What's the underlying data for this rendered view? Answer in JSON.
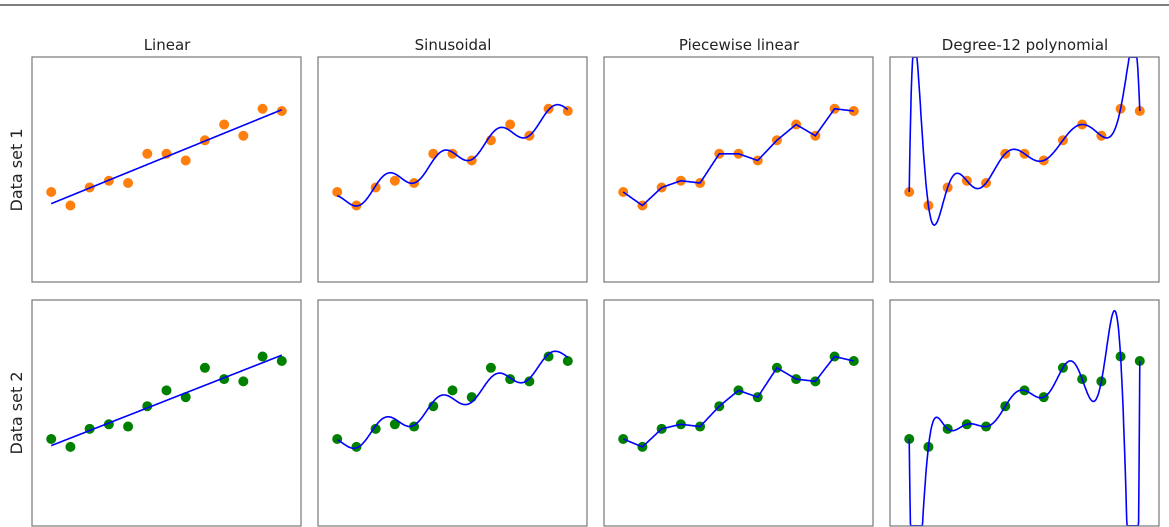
{
  "colors": {
    "fit_line": "#0000ff",
    "data_set_1": "#ff7f0e",
    "data_set_2": "#008000",
    "frame": "#777777"
  },
  "chart_data": {
    "type": "scatter",
    "layout": "grid 2 rows x 4 columns",
    "grid": false,
    "axes_ticks": false,
    "column_titles": [
      "Linear",
      "Sinusoidal",
      "Piecewise linear",
      "Degree-12 polynomial"
    ],
    "row_labels": [
      "Data set 1",
      "Data set 2"
    ],
    "xlim": [
      -1,
      13
    ],
    "ylim": [
      0,
      10
    ],
    "x": [
      0,
      1,
      2,
      3,
      4,
      5,
      6,
      7,
      8,
      9,
      10,
      11,
      12
    ],
    "series": [
      {
        "name": "Data set 1",
        "color": "#ff7f0e",
        "y": [
          4.0,
          3.4,
          4.2,
          4.5,
          4.4,
          5.7,
          5.7,
          5.4,
          6.3,
          7.0,
          6.5,
          7.7,
          7.6
        ]
      },
      {
        "name": "Data set 2",
        "color": "#008000",
        "y": [
          3.85,
          3.5,
          4.3,
          4.5,
          4.4,
          5.3,
          6.0,
          5.7,
          7.0,
          6.5,
          6.4,
          7.5,
          7.3
        ]
      }
    ],
    "fits": [
      "linear",
      "sinusoidal",
      "piecewise-linear",
      "polynomial-degree-12"
    ],
    "sinusoid_period": 2.9
  }
}
